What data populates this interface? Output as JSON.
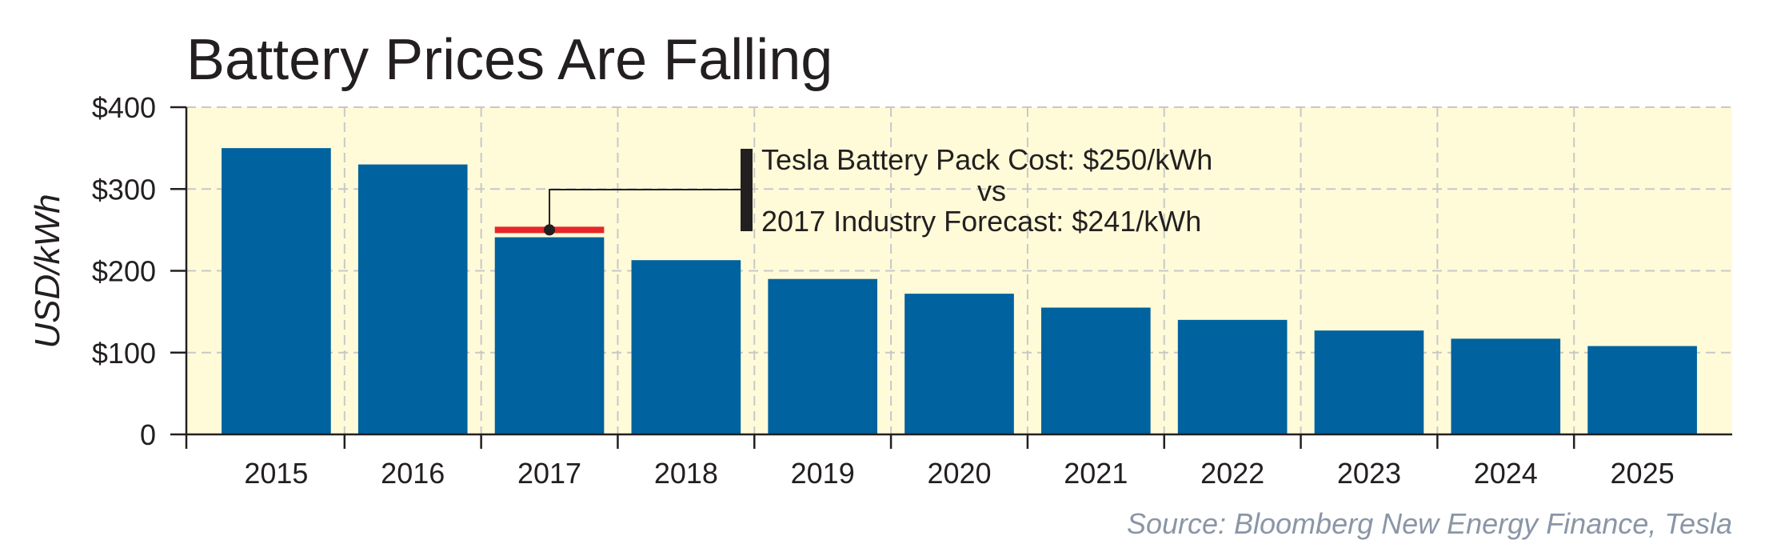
{
  "chart_data": {
    "type": "bar",
    "title": "Battery Prices Are Falling",
    "xlabel": "",
    "ylabel": "USD/kWh",
    "categories": [
      "2015",
      "2016",
      "2017",
      "2018",
      "2019",
      "2020",
      "2021",
      "2022",
      "2023",
      "2024",
      "2025"
    ],
    "values": [
      350,
      330,
      241,
      213,
      190,
      172,
      155,
      140,
      127,
      117,
      108
    ],
    "ylim": [
      0,
      400
    ],
    "yticks": [
      0,
      100,
      200,
      300,
      400
    ],
    "ytick_labels": [
      "0",
      "$100",
      "$200",
      "$300",
      "$400"
    ],
    "grid": true,
    "annotation": {
      "year": 2017,
      "tesla_pack_cost": 250,
      "industry_forecast": 241,
      "lines": [
        "Tesla Battery Pack Cost: $250/kWh",
        "vs",
        "2017 Industry Forecast: $241/kWh"
      ]
    },
    "source": "Source: Bloomberg New Energy Finance, Tesla"
  },
  "colors": {
    "bar": "#00629e",
    "plot_background": "#fffbd8",
    "gridline": "#c8c8c8",
    "axis": "#231f20",
    "tesla_marker": "#e8262a",
    "text": "#231f20",
    "source_text": "#8a96a6"
  }
}
